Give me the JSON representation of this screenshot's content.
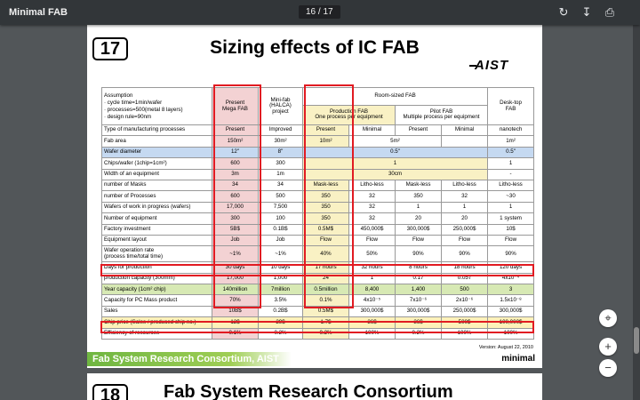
{
  "toolbar": {
    "title": "Minimal FAB",
    "page_indicator": "16 / 17",
    "icons": [
      "rotate-icon",
      "download-icon",
      "print-icon"
    ]
  },
  "slide": {
    "number": "17",
    "title": "Sizing effects of IC FAB",
    "logo": "AIST",
    "footer": "Fab System Research Consortium, AIST",
    "version": "Version:  August 22, 2010",
    "brand": "minimal"
  },
  "next_slide": {
    "number": "18",
    "title": "Fab System Research Consortium"
  },
  "table": {
    "header": {
      "assumption": [
        "Assumption",
        "· cycle time=1min/wafer",
        "· processes=500(metal 8 layers)",
        "· design rule=90nm"
      ],
      "mega": "Present\nMega FAB",
      "minifab": "Mini-fab\n(HALCA)\nproject",
      "room_sized": "Room-sized FAB",
      "production": "Production FAB\nOne process per equipment",
      "pilot": "Pilot FAB\nMultiple process per equipment",
      "desktop": "Desk-top\nFAB"
    },
    "rows": [
      [
        "Type of manufacturing processes",
        "Present",
        "Improved",
        "Present",
        "Minimal",
        "Present",
        "Minimal",
        "nanotech"
      ],
      [
        "Fab area",
        "150m²",
        "30m²",
        "10m²",
        "",
        "5m²",
        "",
        "1m²"
      ],
      [
        "Wafer diameter",
        "12\"",
        "8\"",
        "",
        "0.5\"",
        "",
        "",
        "0.5\""
      ],
      [
        "Chips/wafer (1chip=1cm²)",
        "600",
        "300",
        "",
        "1",
        "",
        "",
        "1"
      ],
      [
        "Width of an equipment",
        "3m",
        "1m",
        "",
        "30cm",
        "",
        "",
        "-"
      ],
      [
        "number of Masks",
        "34",
        "34",
        "Mask-less",
        "Litho-less",
        "Mask-less",
        "Litho-less",
        "Litho-less"
      ],
      [
        "number of Processes",
        "600",
        "500",
        "350",
        "32",
        "350",
        "32",
        "~30"
      ],
      [
        "Wafers of work in progress (wafers)",
        "17,000",
        "7,500",
        "350",
        "32",
        "1",
        "1",
        "1"
      ],
      [
        "Number of equipment",
        "300",
        "100",
        "350",
        "32",
        "20",
        "20",
        "1 system"
      ],
      [
        "Factory investment",
        "5B$",
        "0.1B$",
        "0.5M$",
        "450,000$",
        "300,000$",
        "250,000$",
        "10$"
      ],
      [
        "Equipment layout",
        "Job",
        "Job",
        "Flow",
        "Flow",
        "Flow",
        "Flow",
        "Flow"
      ],
      [
        "Wafer operation rate\n(process time/total time)",
        "~1%",
        "~1%",
        "40%",
        "50%",
        "90%",
        "90%",
        "90%"
      ],
      [
        "Days for production",
        "30 days",
        "10 days",
        "17 hours",
        "32 hours",
        "8 hours",
        "18 hours",
        "120 days"
      ],
      [
        "production capacity (300mm)",
        "17,000",
        "1,000",
        "24",
        "1",
        "0.17",
        "0.057",
        "4x10⁻⁴"
      ],
      [
        "Year capacity (1cm² chip)",
        "140million",
        "7million",
        "0.5million",
        "8,400",
        "1,400",
        "500",
        "3"
      ],
      [
        "Capacity for PC Mass product",
        "70%",
        "3.5%",
        "0.1%",
        "4x10⁻⁵",
        "7x10⁻⁶",
        "2x10⁻⁶",
        "1.5x10⁻⁸"
      ],
      [
        "Sales",
        "10B$",
        "0.2B$",
        "0.5M$",
        "300,000$",
        "300,000$",
        "250,000$",
        "300,000$"
      ],
      [
        "Chip price (Sales / produced chip no.)",
        "12$",
        "29$",
        "1.7$",
        "36$",
        "36$",
        "500$",
        "100,000$"
      ],
      [
        "Efficiency of resources",
        "0.1%",
        "0.2%",
        "0.2%",
        "100%",
        "0.2%",
        "100%",
        "100%"
      ]
    ]
  },
  "colors": {
    "highlight_red": "#e11b22",
    "blue_row": "#c5d9f1",
    "green_row": "#d7e9b4",
    "yellow_row": "#fef1b9",
    "footer_green": "#6fb641"
  }
}
